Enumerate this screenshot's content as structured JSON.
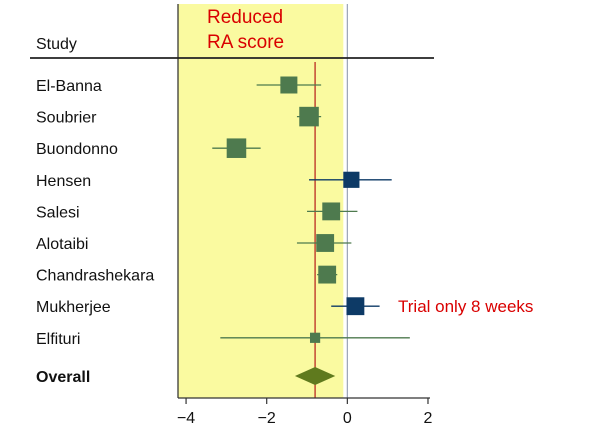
{
  "chart_data": {
    "type": "forest",
    "header": "Study",
    "region_label": [
      "Reduced",
      "RA score"
    ],
    "overall_label": "Overall",
    "overall": {
      "estimate": -0.8,
      "ci": [
        -1.3,
        -0.3
      ]
    },
    "xlim": [
      -4.2,
      2.05
    ],
    "xticks": [
      -4,
      -2,
      0,
      2
    ],
    "reference_line": 0,
    "shaded_region": [
      -4.2,
      -0.1
    ],
    "studies": [
      {
        "name": "El-Banna",
        "estimate": -1.45,
        "ci": [
          -2.25,
          -0.65
        ],
        "weight": 1.0,
        "color": "#4e7a4e"
      },
      {
        "name": "Soubrier",
        "estimate": -0.95,
        "ci": [
          -1.25,
          -0.65
        ],
        "weight": 1.15,
        "color": "#4e7a4e"
      },
      {
        "name": "Buondonno",
        "estimate": -2.75,
        "ci": [
          -3.35,
          -2.15
        ],
        "weight": 1.15,
        "color": "#4e7a4e"
      },
      {
        "name": "Hensen",
        "estimate": 0.1,
        "ci": [
          -0.95,
          1.1
        ],
        "weight": 0.95,
        "color": "#0d3a66"
      },
      {
        "name": "Salesi",
        "estimate": -0.4,
        "ci": [
          -1.0,
          0.25
        ],
        "weight": 1.05,
        "color": "#4e7a4e"
      },
      {
        "name": "Alotaibi",
        "estimate": -0.55,
        "ci": [
          -1.25,
          0.1
        ],
        "weight": 1.05,
        "color": "#4e7a4e"
      },
      {
        "name": "Chandrashekara",
        "estimate": -0.5,
        "ci": [
          -0.75,
          -0.25
        ],
        "weight": 1.05,
        "color": "#4e7a4e"
      },
      {
        "name": "Mukherjee",
        "estimate": 0.2,
        "ci": [
          -0.4,
          0.8
        ],
        "weight": 1.05,
        "color": "#0d3a66"
      },
      {
        "name": "Elfituri",
        "estimate": -0.8,
        "ci": [
          -3.15,
          1.55
        ],
        "weight": 0.6,
        "color": "#4e7a4e"
      }
    ],
    "annotation": {
      "text": "Trial only 8 weeks",
      "study": "Mukherjee"
    },
    "colors": {
      "shade": "#fafaa0",
      "shade_border": "#2a2a2a",
      "pooled_line": "#c0392b",
      "zero_line": "#9aa3b5",
      "diamond": "#5f7a1e",
      "region_text": "#d90000",
      "annotation_text": "#d90000"
    }
  }
}
